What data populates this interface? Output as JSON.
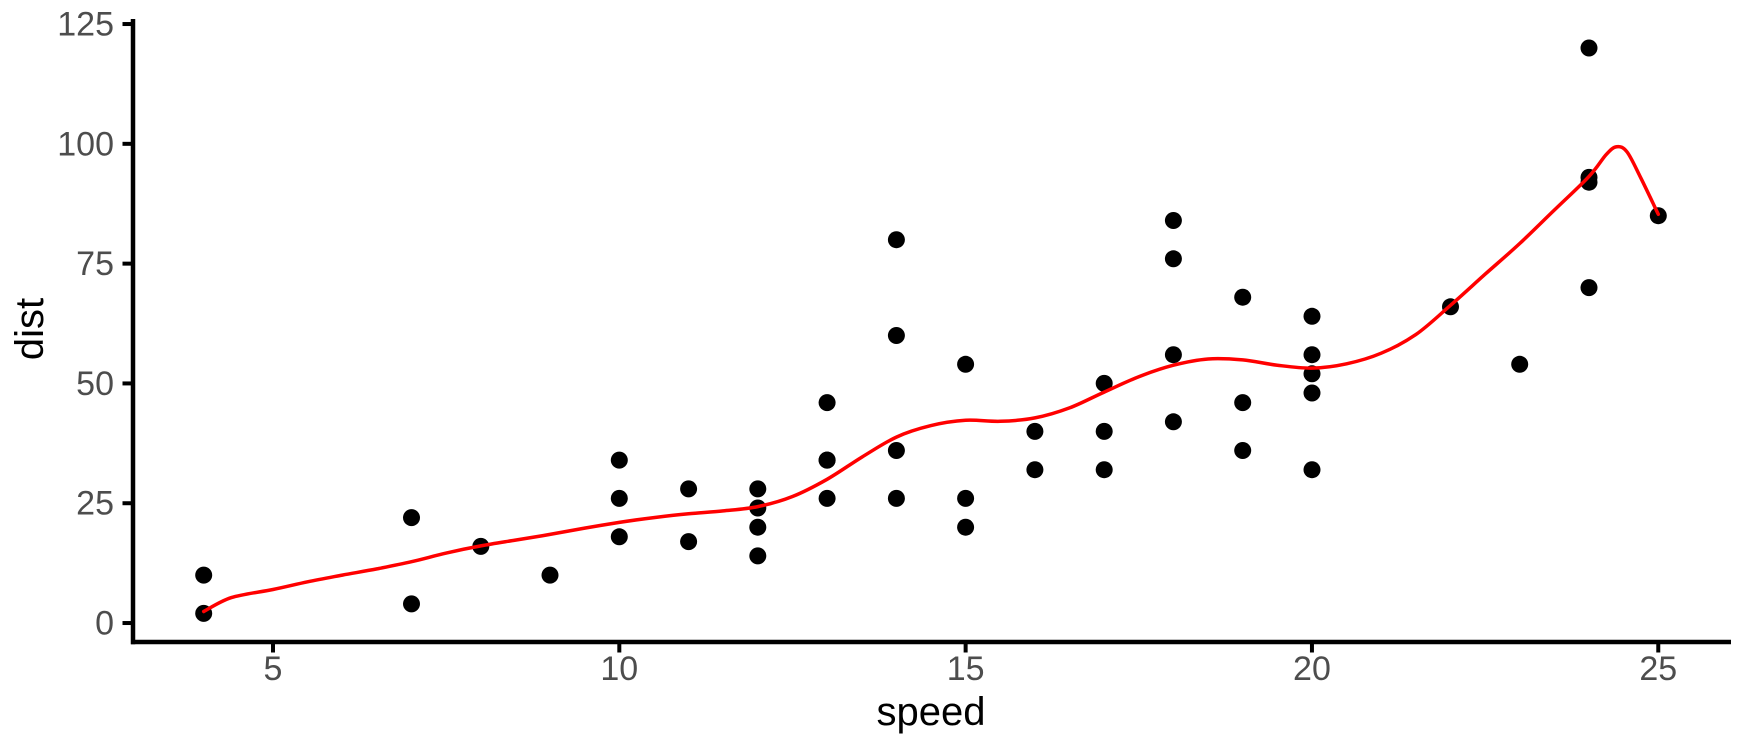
{
  "page": {
    "background": "#ffffff"
  },
  "chart_data": {
    "type": "scatter",
    "title": "",
    "xlabel": "speed",
    "ylabel": "dist",
    "xlim": [
      2.95,
      26.05
    ],
    "ylim": [
      -3.75,
      126.05
    ],
    "x_ticks": [
      5,
      10,
      15,
      20,
      25
    ],
    "y_ticks": [
      0,
      25,
      50,
      75,
      100,
      125
    ],
    "grid": "off",
    "legend": "none",
    "theme": "classic",
    "colors": {
      "point": "#000000",
      "smooth_line": "#ff0000",
      "axis": "#000000",
      "tick_label": "#4d4d4d",
      "axis_title": "#000000",
      "background": "#ffffff"
    },
    "series": [
      {
        "name": "observations",
        "type": "scatter",
        "color": "#000000",
        "data": [
          [
            4,
            2
          ],
          [
            4,
            10
          ],
          [
            7,
            4
          ],
          [
            7,
            22
          ],
          [
            8,
            16
          ],
          [
            9,
            10
          ],
          [
            10,
            18
          ],
          [
            10,
            26
          ],
          [
            10,
            34
          ],
          [
            11,
            17
          ],
          [
            11,
            28
          ],
          [
            12,
            14
          ],
          [
            12,
            20
          ],
          [
            12,
            24
          ],
          [
            12,
            28
          ],
          [
            13,
            26
          ],
          [
            13,
            34
          ],
          [
            13,
            34
          ],
          [
            13,
            46
          ],
          [
            14,
            26
          ],
          [
            14,
            36
          ],
          [
            14,
            60
          ],
          [
            14,
            80
          ],
          [
            15,
            20
          ],
          [
            15,
            26
          ],
          [
            15,
            54
          ],
          [
            16,
            32
          ],
          [
            16,
            40
          ],
          [
            17,
            32
          ],
          [
            17,
            40
          ],
          [
            17,
            50
          ],
          [
            18,
            42
          ],
          [
            18,
            56
          ],
          [
            18,
            76
          ],
          [
            18,
            84
          ],
          [
            19,
            36
          ],
          [
            19,
            46
          ],
          [
            19,
            68
          ],
          [
            20,
            32
          ],
          [
            20,
            48
          ],
          [
            20,
            52
          ],
          [
            20,
            56
          ],
          [
            20,
            64
          ],
          [
            22,
            66
          ],
          [
            23,
            54
          ],
          [
            24,
            70
          ],
          [
            24,
            92
          ],
          [
            24,
            93
          ],
          [
            24,
            120
          ],
          [
            25,
            85
          ]
        ]
      },
      {
        "name": "loess-smooth",
        "type": "line",
        "color": "#ff0000",
        "data": [
          [
            4,
            2.4
          ],
          [
            4.4,
            5.3
          ],
          [
            5,
            7.0
          ],
          [
            5.5,
            8.6
          ],
          [
            6,
            10.0
          ],
          [
            6.5,
            11.3
          ],
          [
            7,
            12.8
          ],
          [
            7.5,
            14.6
          ],
          [
            8,
            16.1
          ],
          [
            8.5,
            17.3
          ],
          [
            9,
            18.5
          ],
          [
            9.5,
            19.8
          ],
          [
            10,
            21.0
          ],
          [
            10.5,
            22.0
          ],
          [
            11,
            22.8
          ],
          [
            11.5,
            23.4
          ],
          [
            12,
            24.3
          ],
          [
            12.5,
            26.4
          ],
          [
            13,
            30.0
          ],
          [
            13.5,
            34.6
          ],
          [
            14,
            38.8
          ],
          [
            14.5,
            41.2
          ],
          [
            15,
            42.3
          ],
          [
            15.5,
            42.1
          ],
          [
            16,
            42.8
          ],
          [
            16.5,
            44.9
          ],
          [
            17,
            48.2
          ],
          [
            17.5,
            51.4
          ],
          [
            18,
            53.8
          ],
          [
            18.5,
            55.1
          ],
          [
            19,
            54.9
          ],
          [
            19.5,
            53.8
          ],
          [
            20,
            53.2
          ],
          [
            20.5,
            54.1
          ],
          [
            21,
            56.3
          ],
          [
            21.5,
            60.2
          ],
          [
            22,
            66.3
          ],
          [
            22.5,
            72.8
          ],
          [
            23,
            79.2
          ],
          [
            23.5,
            86.2
          ],
          [
            24,
            93.2
          ],
          [
            24.25,
            97.8
          ],
          [
            24.4,
            99.4
          ],
          [
            24.55,
            98.3
          ],
          [
            24.75,
            92.8
          ],
          [
            25,
            85.3
          ]
        ]
      }
    ]
  }
}
